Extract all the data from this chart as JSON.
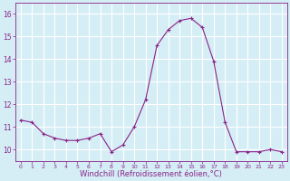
{
  "x": [
    0,
    1,
    2,
    3,
    4,
    5,
    6,
    7,
    8,
    9,
    10,
    11,
    12,
    13,
    14,
    15,
    16,
    17,
    18,
    19,
    20,
    21,
    22,
    23
  ],
  "y": [
    11.3,
    11.2,
    10.7,
    10.5,
    10.4,
    10.4,
    10.5,
    10.7,
    9.9,
    10.2,
    11.0,
    12.2,
    14.6,
    15.3,
    15.7,
    15.8,
    15.4,
    13.9,
    11.2,
    9.9,
    9.9,
    9.9,
    10.0,
    9.9
  ],
  "line_color": "#882288",
  "marker": "+",
  "marker_size": 3,
  "xlabel": "Windchill (Refroidissement éolien,°C)",
  "xlabel_fontsize": 6,
  "xtick_labels": [
    "0",
    "1",
    "2",
    "3",
    "4",
    "5",
    "6",
    "7",
    "8",
    "9",
    "10",
    "11",
    "12",
    "13",
    "14",
    "15",
    "16",
    "17",
    "18",
    "19",
    "20",
    "21",
    "22",
    "23"
  ],
  "ytick_labels": [
    "10",
    "11",
    "12",
    "13",
    "14",
    "15",
    "16"
  ],
  "ytick_vals": [
    10,
    11,
    12,
    13,
    14,
    15,
    16
  ],
  "ylim": [
    9.5,
    16.5
  ],
  "xlim": [
    -0.5,
    23.5
  ],
  "background_color": "#d5eef5",
  "grid_color": "#ffffff",
  "tick_color": "#882288",
  "label_color": "#882288"
}
